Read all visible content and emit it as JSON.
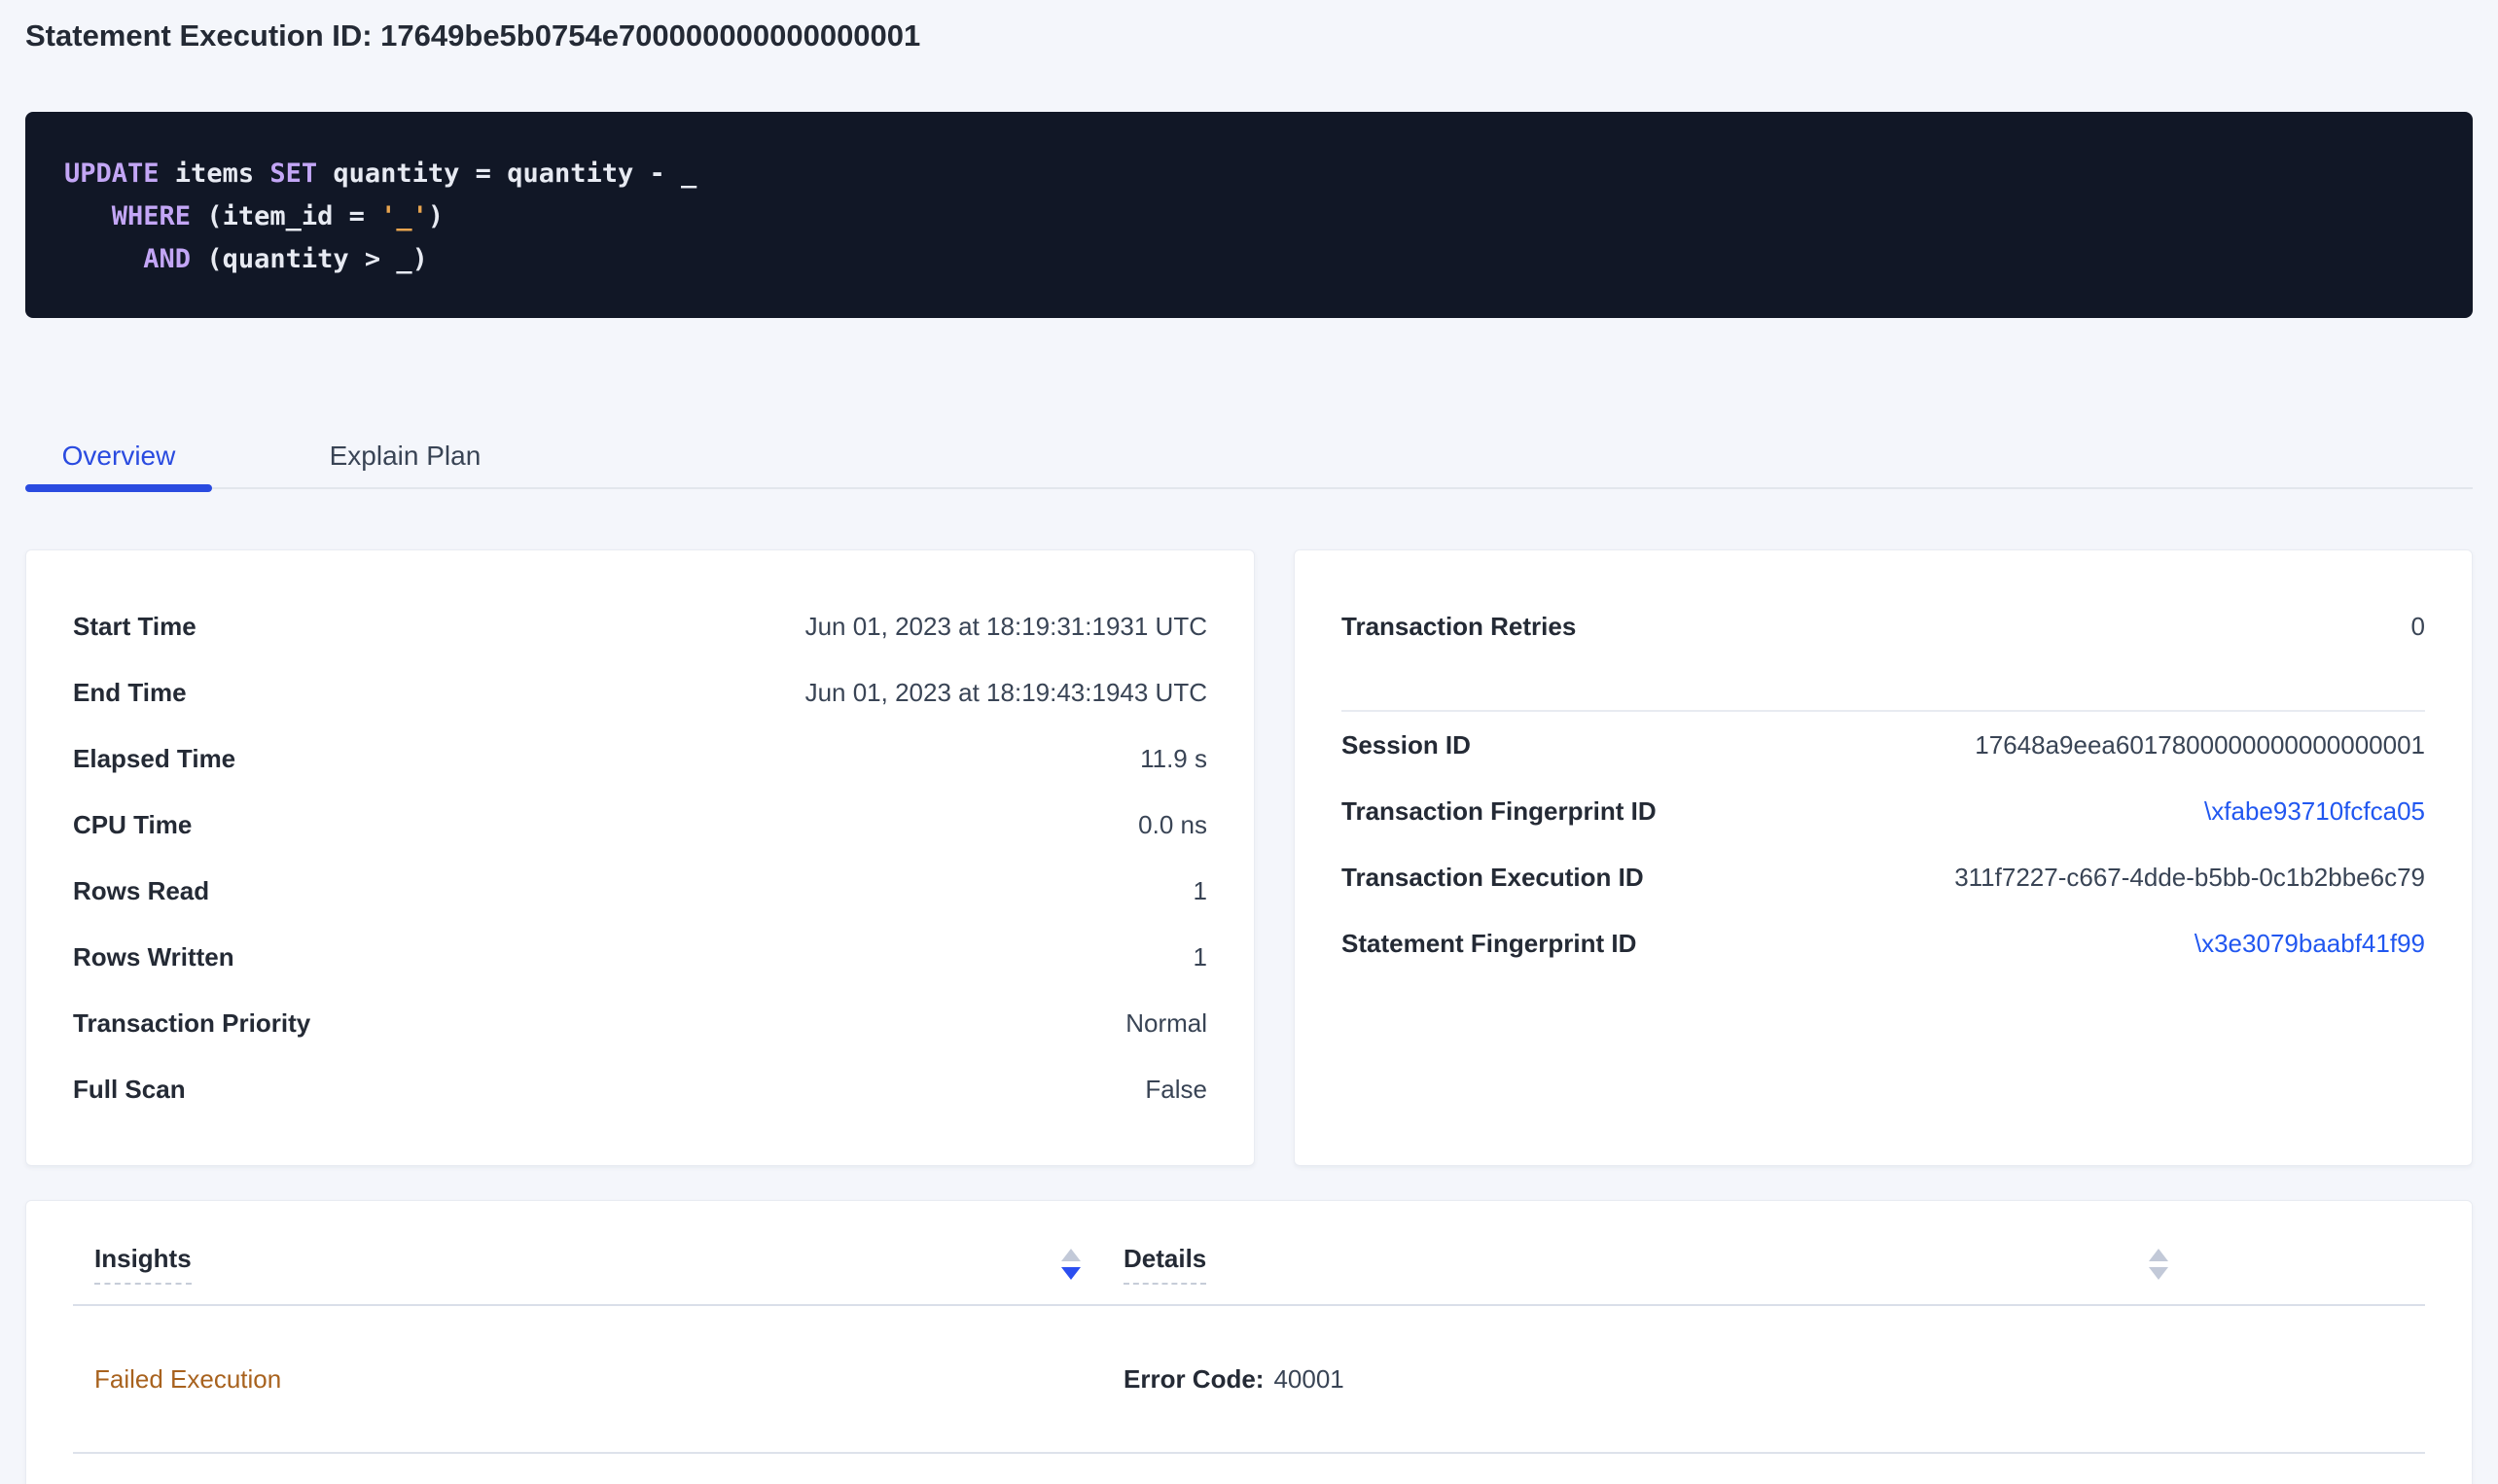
{
  "page": {
    "title": "Statement Execution ID: 17649be5b0754e700000000000000001"
  },
  "sql": {
    "lines": [
      [
        {
          "t": "UPDATE",
          "c": "kw"
        },
        {
          "t": " items ",
          "c": "pl"
        },
        {
          "t": "SET",
          "c": "kw"
        },
        {
          "t": " quantity = quantity - _",
          "c": "pl"
        }
      ],
      [
        {
          "t": "   ",
          "c": "pl"
        },
        {
          "t": "WHERE",
          "c": "kw"
        },
        {
          "t": " (item_id = ",
          "c": "pl"
        },
        {
          "t": "'_'",
          "c": "str"
        },
        {
          "t": ")",
          "c": "pl"
        }
      ],
      [
        {
          "t": "     ",
          "c": "pl"
        },
        {
          "t": "AND",
          "c": "kw"
        },
        {
          "t": " (quantity > _)",
          "c": "pl"
        }
      ]
    ]
  },
  "tabs": {
    "overview": "Overview",
    "explain_plan": "Explain Plan",
    "active": "Overview"
  },
  "overview_card": {
    "rows": [
      {
        "label": "Start Time",
        "value": "Jun 01, 2023 at 18:19:31:1931 UTC"
      },
      {
        "label": "End Time",
        "value": "Jun 01, 2023 at 18:19:43:1943 UTC"
      },
      {
        "label": "Elapsed Time",
        "value": "11.9 s"
      },
      {
        "label": "CPU Time",
        "value": "0.0 ns"
      },
      {
        "label": "Rows Read",
        "value": "1"
      },
      {
        "label": "Rows Written",
        "value": "1"
      },
      {
        "label": "Transaction Priority",
        "value": "Normal"
      },
      {
        "label": "Full Scan",
        "value": "False"
      }
    ]
  },
  "transaction_card": {
    "retries": {
      "label": "Transaction Retries",
      "value": "0"
    },
    "rows": [
      {
        "label": "Session ID",
        "value": "17648a9eea6017800000000000000001",
        "link": false
      },
      {
        "label": "Transaction Fingerprint ID",
        "value": "\\xfabe93710fcfca05",
        "link": true
      },
      {
        "label": "Transaction Execution ID",
        "value": "311f7227-c667-4dde-b5bb-0c1b2bbe6c79",
        "link": false
      },
      {
        "label": "Statement Fingerprint ID",
        "value": "\\x3e3079baabf41f99",
        "link": true
      }
    ]
  },
  "insights_table": {
    "headers": {
      "insights": "Insights",
      "details": "Details"
    },
    "sort": {
      "insights": "desc",
      "details": "none"
    },
    "row": {
      "insight": "Failed Execution",
      "details_label": "Error Code:",
      "details_value": "40001"
    }
  },
  "colors": {
    "accent": "#2a4be0",
    "link": "#2157f0",
    "warning": "#a8621e",
    "code_bg": "#111726",
    "code_text": "#e7eaf2",
    "code_keyword": "#c3a6f5",
    "code_string": "#e8a44f",
    "sort_active": "#2b4ef0",
    "sort_inactive": "#c2c9d8"
  }
}
